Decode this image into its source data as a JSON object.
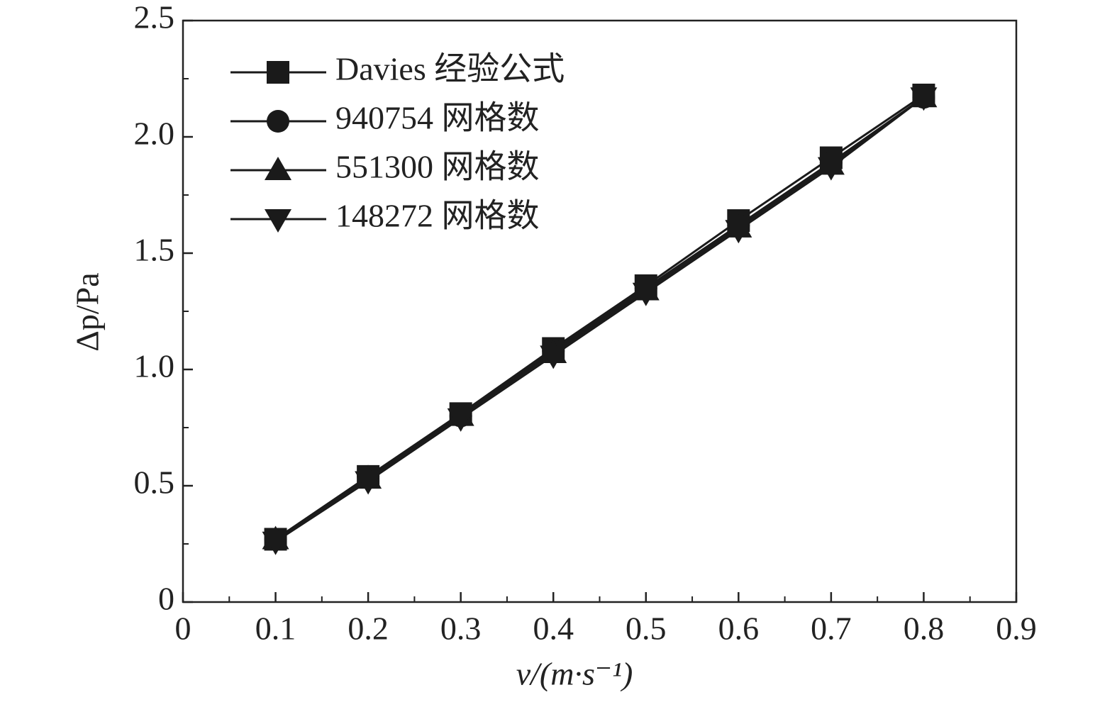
{
  "chart_data": {
    "type": "line",
    "xlabel": "v/(m·s⁻¹)",
    "ylabel": "Δp/Pa",
    "x": [
      0.1,
      0.2,
      0.3,
      0.4,
      0.5,
      0.6,
      0.7,
      0.8
    ],
    "series": [
      {
        "name": "Davies 经验公式",
        "color": "#1a1a1a",
        "marker": "square",
        "values": [
          0.27,
          0.54,
          0.81,
          1.09,
          1.36,
          1.64,
          1.91,
          2.18
        ]
      },
      {
        "name": "940754 网格数",
        "color": "#1a1a1a",
        "marker": "circle",
        "values": [
          0.27,
          0.54,
          0.8,
          1.08,
          1.35,
          1.62,
          1.89,
          2.17
        ]
      },
      {
        "name": "551300 网格数",
        "color": "#1a1a1a",
        "marker": "triangle-up",
        "values": [
          0.27,
          0.53,
          0.8,
          1.07,
          1.34,
          1.61,
          1.88,
          2.17
        ]
      },
      {
        "name": "148272 网格数",
        "color": "#1a1a1a",
        "marker": "triangle-down",
        "values": [
          0.26,
          0.52,
          0.79,
          1.06,
          1.33,
          1.6,
          1.87,
          2.17
        ]
      }
    ],
    "xlim": [
      0,
      0.9
    ],
    "xticks": [
      0,
      0.1,
      0.2,
      0.3,
      0.4,
      0.5,
      0.6,
      0.7,
      0.8,
      0.9
    ],
    "ylim": [
      0,
      2.5
    ],
    "yticks": [
      0,
      0.5,
      {
        "value": 1,
        "label": "1.0"
      },
      1.5,
      {
        "value": 2,
        "label": "2.0"
      },
      2.5
    ],
    "grid": false,
    "legend": "upper left"
  }
}
